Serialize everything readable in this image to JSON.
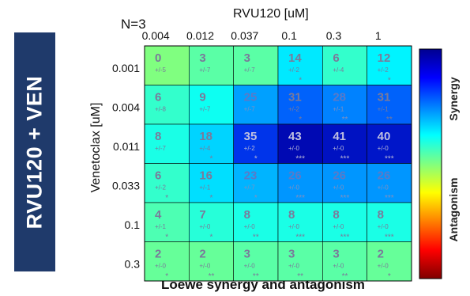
{
  "side_title": "RVU120 + VEN",
  "n_label": "N=3",
  "chart_data": {
    "type": "heatmap",
    "title": "Loewe synergy and antagonism",
    "xlabel": "RVU120 [uM]",
    "ylabel": "Venetoclax [uM]",
    "x_ticks": [
      "0.004",
      "0.012",
      "0.037",
      "0.1",
      "0.3",
      "1"
    ],
    "y_ticks": [
      "0.001",
      "0.004",
      "0.011",
      "0.033",
      "0.1",
      "0.3"
    ],
    "values": [
      [
        0,
        3,
        3,
        14,
        6,
        12
      ],
      [
        6,
        9,
        25,
        31,
        28,
        31
      ],
      [
        8,
        18,
        35,
        43,
        41,
        40
      ],
      [
        6,
        16,
        23,
        26,
        26,
        26
      ],
      [
        4,
        7,
        8,
        8,
        8,
        8
      ],
      [
        2,
        2,
        3,
        3,
        3,
        2
      ]
    ],
    "errors": [
      [
        "+/-5",
        "+/-7",
        "+/-7",
        "+/-2",
        "+/-4",
        "+/-2"
      ],
      [
        "+/-8",
        "+/-7",
        "+/-7",
        "+/-2",
        "+/-1",
        "+/-1"
      ],
      [
        "+/-7",
        "+/-4",
        "+/-2",
        "+/-0",
        "+/-0",
        "+/-0"
      ],
      [
        "+/-2",
        "+/-1",
        "+/-7",
        "+/-0",
        "+/-0",
        "+/-0"
      ],
      [
        "+/-1",
        "+/-0",
        "+/-0",
        "+/-0",
        "+/-0",
        "+/-0"
      ],
      [
        "+/-0",
        "+/-0",
        "+/-0",
        "+/-0",
        "+/-0",
        "+/-0"
      ]
    ],
    "stars": [
      [
        "",
        "",
        "",
        "*",
        "",
        "*"
      ],
      [
        "",
        "",
        "",
        "*",
        "**",
        "**"
      ],
      [
        "",
        "*",
        "*",
        "***",
        "***",
        "***"
      ],
      [
        "*",
        "*",
        "*",
        "***",
        "***",
        "***"
      ],
      [
        "*",
        "*",
        "**",
        "***",
        "***",
        "***"
      ],
      [
        "*",
        "**",
        "**",
        "**",
        "**",
        "*"
      ]
    ],
    "colorbar": {
      "labels_top_to_bottom": [
        "Synergy",
        "Antagonism"
      ],
      "colors_top_to_bottom": [
        "#00008f",
        "#0000ff",
        "#0080ff",
        "#00ffff",
        "#80ff80",
        "#ffff00",
        "#ff8000",
        "#ff0000",
        "#800000"
      ]
    }
  }
}
